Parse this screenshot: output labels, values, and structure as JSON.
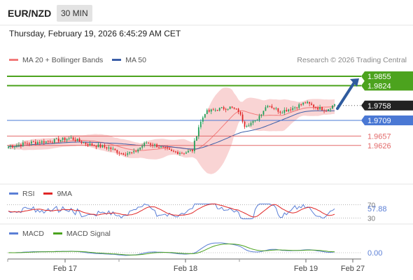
{
  "header": {
    "symbol": "EUR/NZD",
    "interval": "30 MIN"
  },
  "datetime": "Thursday, February 19, 2026 6:45:29 AM CET",
  "credit": "Research © 2026 Trading Central",
  "colors": {
    "up": "#22a05a",
    "down": "#e02626",
    "bollinger": "#f7c6c6",
    "ma20": "#f27a7a",
    "ma50": "#3c5fa8",
    "level_green": "#4ca31e",
    "level_blue": "#4a78d4",
    "level_red": "#e26a6a",
    "arrow": "#2f5b9e",
    "rsi": "#5b7fd6",
    "rsi_ma": "#e02626",
    "macd": "#5b7fd6",
    "macd_signal": "#4ca31e"
  },
  "chart_data": [
    {
      "type": "candlestick",
      "legend": [
        {
          "name": "MA 20 + Bollinger Bands",
          "color": "#f27a7a"
        },
        {
          "name": "MA 50",
          "color": "#3c5fa8"
        }
      ],
      "levels": [
        {
          "value": 1.9855,
          "label": "1.9855",
          "kind": "resistance"
        },
        {
          "value": 1.9824,
          "label": "1.9824",
          "kind": "resistance"
        },
        {
          "value": 1.9758,
          "label": "1.9758",
          "kind": "last"
        },
        {
          "value": 1.9709,
          "label": "1.9709",
          "kind": "pivot"
        },
        {
          "value": 1.9657,
          "label": "1.9657",
          "kind": "support"
        },
        {
          "value": 1.9626,
          "label": "1.9626",
          "kind": "support"
        }
      ],
      "ylim": [
        1.9505,
        1.9885
      ],
      "x_ticks": [
        "Feb 17",
        "Feb 18",
        "Feb 19",
        "Feb 27"
      ],
      "trend_arrow": {
        "from": 1.9748,
        "to": 1.9848
      },
      "key_points": [
        {
          "t": 0,
          "v": 1.9622
        },
        {
          "t": 10,
          "v": 1.9635
        },
        {
          "t": 20,
          "v": 1.964
        },
        {
          "t": 30,
          "v": 1.965
        },
        {
          "t": 38,
          "v": 1.963
        },
        {
          "t": 48,
          "v": 1.9618
        },
        {
          "t": 54,
          "v": 1.96
        },
        {
          "t": 60,
          "v": 1.9602
        },
        {
          "t": 66,
          "v": 1.9636
        },
        {
          "t": 72,
          "v": 1.9622
        },
        {
          "t": 78,
          "v": 1.9605
        },
        {
          "t": 84,
          "v": 1.9602
        },
        {
          "t": 88,
          "v": 1.961
        },
        {
          "t": 91,
          "v": 1.9688
        },
        {
          "t": 94,
          "v": 1.9735
        },
        {
          "t": 100,
          "v": 1.9746
        },
        {
          "t": 106,
          "v": 1.9752
        },
        {
          "t": 110,
          "v": 1.974
        },
        {
          "t": 113,
          "v": 1.9693
        },
        {
          "t": 118,
          "v": 1.9705
        },
        {
          "t": 124,
          "v": 1.9762
        },
        {
          "t": 130,
          "v": 1.9738
        },
        {
          "t": 136,
          "v": 1.975
        },
        {
          "t": 142,
          "v": 1.9768
        },
        {
          "t": 148,
          "v": 1.975
        },
        {
          "t": 152,
          "v": 1.9744
        },
        {
          "t": 156,
          "v": 1.9762
        }
      ]
    },
    {
      "type": "line",
      "legend": [
        {
          "name": "RSI",
          "color": "#5b7fd6"
        },
        {
          "name": "9MA",
          "color": "#e02626"
        }
      ],
      "ylim": [
        25,
        75
      ],
      "reference_lines": [
        {
          "value": 70,
          "label": "70"
        },
        {
          "value": 30,
          "label": "30"
        }
      ],
      "last_value": 57.88,
      "last_label": "57.88"
    },
    {
      "type": "line",
      "legend": [
        {
          "name": "MACD",
          "color": "#5b7fd6"
        },
        {
          "name": "MACD Signal",
          "color": "#4ca31e"
        }
      ],
      "last_value": 0.0,
      "last_label": "0.00"
    }
  ]
}
